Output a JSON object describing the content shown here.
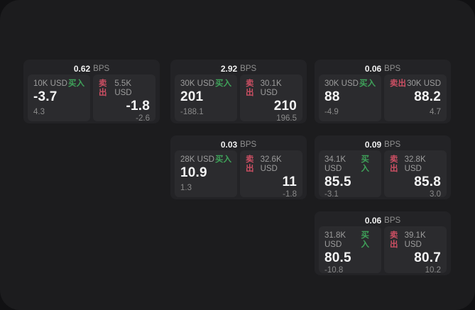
{
  "labels": {
    "bps_unit": "BPS",
    "buy_label": "买入",
    "sell_label": "卖出"
  },
  "colors": {
    "buy": "#3fa35a",
    "sell": "#cc4f63",
    "panel_bg": "#1c1c1e",
    "card_bg": "#232326",
    "tile_bg": "#2b2b2e",
    "value_text": "#f4f4f4",
    "muted_text": "#9c9c9c"
  },
  "cards": [
    {
      "row": 1,
      "col": 1,
      "bps": "0.62",
      "buy": {
        "amount": "10K USD",
        "value": "-3.7",
        "delta": "4.3"
      },
      "sell": {
        "amount": "5.5K USD",
        "value": "-1.8",
        "delta": "-2.6"
      }
    },
    {
      "row": 1,
      "col": 2,
      "bps": "2.92",
      "buy": {
        "amount": "30K USD",
        "value": "201",
        "delta": "-188.1"
      },
      "sell": {
        "amount": "30.1K USD",
        "value": "210",
        "delta": "196.5"
      }
    },
    {
      "row": 1,
      "col": 3,
      "bps": "0.06",
      "buy": {
        "amount": "30K USD",
        "value": "88",
        "delta": "-4.9"
      },
      "sell": {
        "amount": "30K USD",
        "value": "88.2",
        "delta": "4.7"
      }
    },
    {
      "row": 2,
      "col": 2,
      "bps": "0.03",
      "buy": {
        "amount": "28K USD",
        "value": "10.9",
        "delta": "1.3"
      },
      "sell": {
        "amount": "32.6K USD",
        "value": "11",
        "delta": "-1.8"
      }
    },
    {
      "row": 2,
      "col": 3,
      "bps": "0.09",
      "buy": {
        "amount": "34.1K USD",
        "value": "85.5",
        "delta": "-3.1"
      },
      "sell": {
        "amount": "32.8K USD",
        "value": "85.8",
        "delta": "3.0"
      }
    },
    {
      "row": 3,
      "col": 3,
      "bps": "0.06",
      "buy": {
        "amount": "31.8K USD",
        "value": "80.5",
        "delta": "-10.8"
      },
      "sell": {
        "amount": "39.1K USD",
        "value": "80.7",
        "delta": "10.2"
      }
    }
  ]
}
